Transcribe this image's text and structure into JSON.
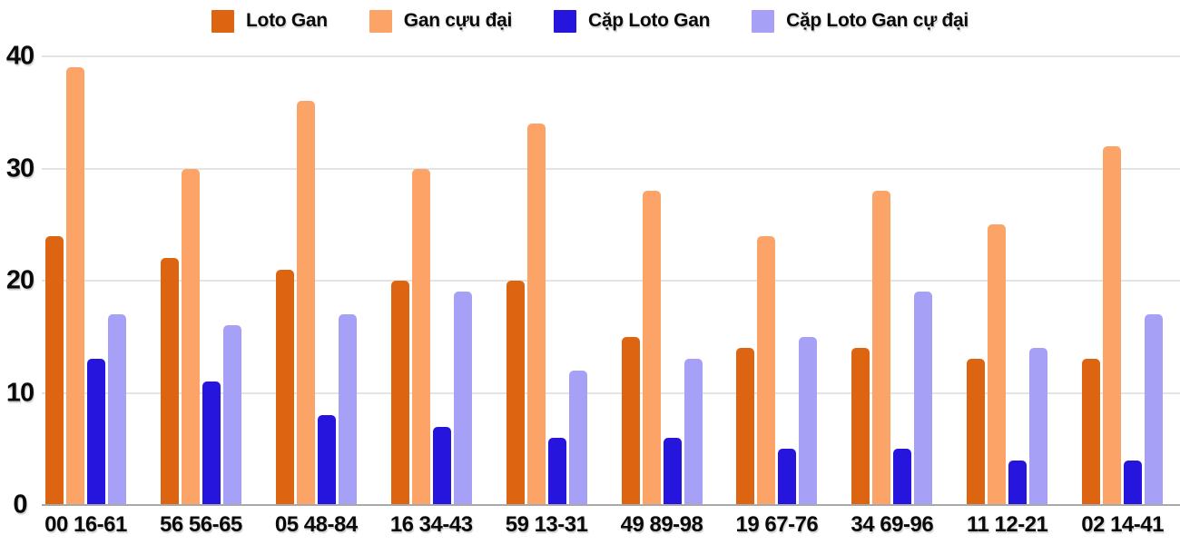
{
  "chart_data": {
    "type": "bar",
    "title": "",
    "xlabel": "",
    "ylabel": "",
    "ylim": [
      0,
      40
    ],
    "y_ticks": [
      0,
      10,
      20,
      30,
      40
    ],
    "grid": "horizontal",
    "legend_position": "top-center",
    "categories": [
      "00 16-61",
      "56 56-65",
      "05 48-84",
      "16 34-43",
      "59 13-31",
      "49 89-98",
      "19 67-76",
      "34 69-96",
      "11 12-21",
      "02 14-41"
    ],
    "series": [
      {
        "name": "Loto Gan",
        "color": "#dd6512",
        "values": [
          24,
          22,
          21,
          20,
          20,
          15,
          14,
          14,
          13,
          13
        ]
      },
      {
        "name": "Gan cựu đại",
        "color": "#fca368",
        "values": [
          39,
          30,
          36,
          30,
          34,
          28,
          24,
          28,
          25,
          32
        ]
      },
      {
        "name": "Cặp Loto Gan",
        "color": "#2615dd",
        "values": [
          13,
          11,
          8,
          7,
          6,
          6,
          5,
          5,
          4,
          4
        ]
      },
      {
        "name": "Cặp Loto Gan cự đại",
        "color": "#a6a0f7",
        "values": [
          17,
          16,
          17,
          19,
          12,
          13,
          15,
          19,
          14,
          17
        ]
      }
    ],
    "colors": {
      "gridline": "#e4e4e4",
      "axis_line": "#a9a9a9",
      "text": "#0a0a0a",
      "background": "#ffffff"
    }
  }
}
